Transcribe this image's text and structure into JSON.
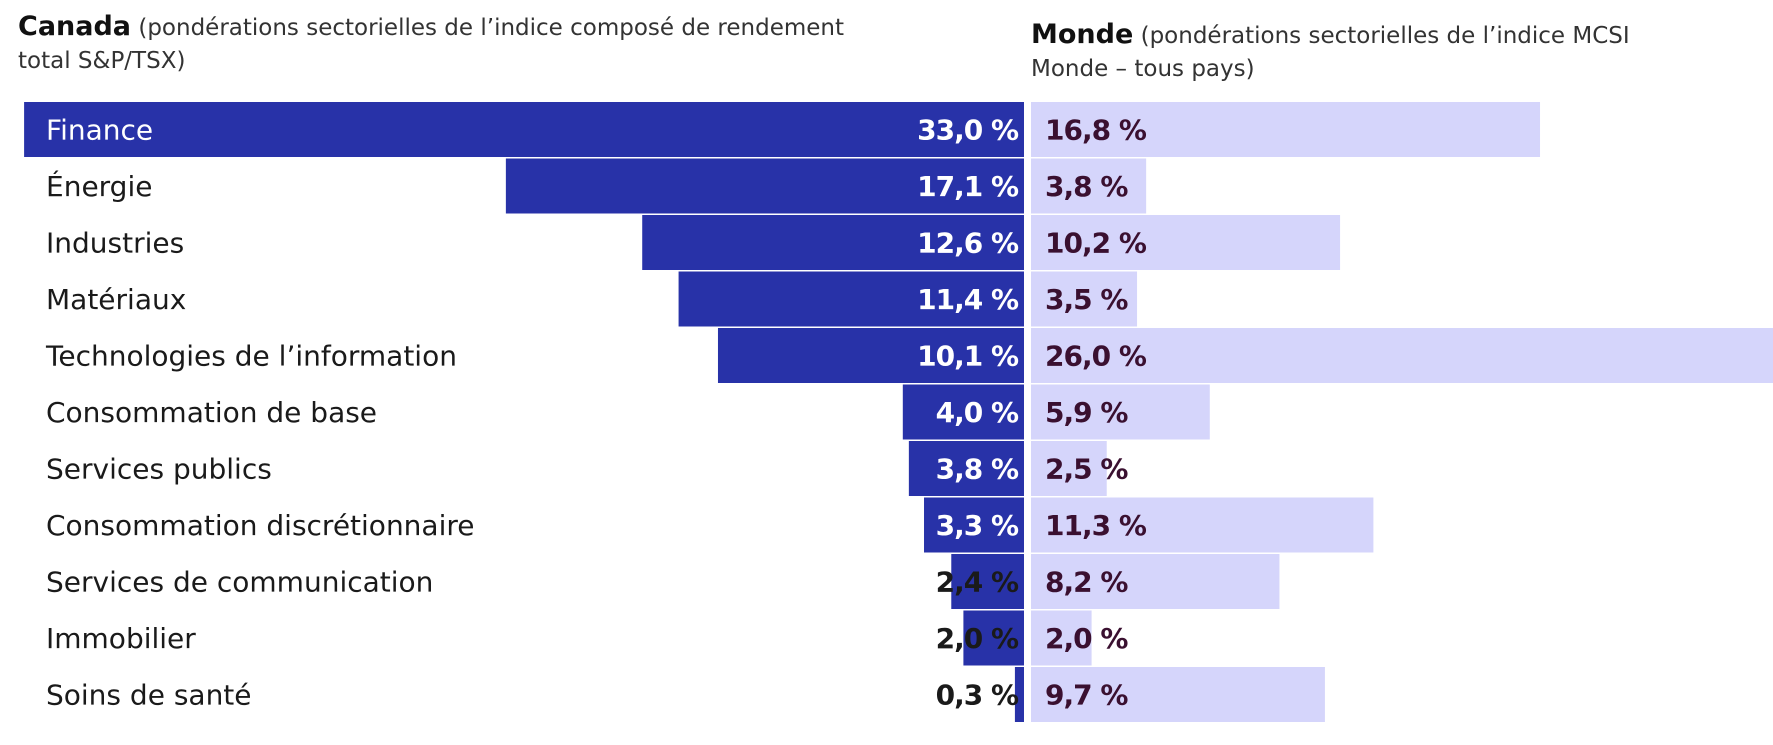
{
  "header": {
    "canada_title": "Canada",
    "canada_subtitle": "(pondérations sectorielles de l’indice composé de rendement total S&P/TSX)",
    "world_title": "Monde",
    "world_subtitle": "(pondérations sectorielles de l’indice MCSI Monde – tous pays)"
  },
  "chart_data": {
    "type": "bar",
    "orientation": "horizontal-butterfly",
    "categories": [
      "Finance",
      "Énergie",
      "Industries",
      "Matériaux",
      "Technologies de l’information",
      "Consommation de base",
      "Services publics",
      "Consommation discrétionnaire",
      "Services de communication",
      "Immobilier",
      "Soins de santé"
    ],
    "series": [
      {
        "name": "Canada",
        "values": [
          33.0,
          17.1,
          12.6,
          11.4,
          10.1,
          4.0,
          3.8,
          3.3,
          2.4,
          2.0,
          0.3
        ],
        "labels": [
          "33,0 %",
          "17,1 %",
          "12,6 %",
          "11,4 %",
          "10,1 %",
          "4,0 %",
          "3,8 %",
          "3,3 %",
          "2,4 %",
          "2,0 %",
          "0,3 %"
        ],
        "color": "#2832a8",
        "direction": "left"
      },
      {
        "name": "Monde",
        "values": [
          16.8,
          3.8,
          10.2,
          3.5,
          26.0,
          5.9,
          2.5,
          11.3,
          8.2,
          2.0,
          9.7
        ],
        "labels": [
          "16,8 %",
          "3,8 %",
          "10,2 %",
          "3,5 %",
          "26,0 %",
          "5,9 %",
          "2,5 %",
          "11,3 %",
          "8,2 %",
          "2,0 %",
          "9,7 %"
        ],
        "color": "#d5d5fb",
        "direction": "right"
      }
    ],
    "colors": {
      "canada_bar": "#2832a8",
      "world_bar": "#d5d5fb",
      "world_value_text": "#3a1030",
      "inside_text": "#ffffff",
      "outside_text": "#1a1a1a"
    },
    "grid": false,
    "legend": "none"
  }
}
